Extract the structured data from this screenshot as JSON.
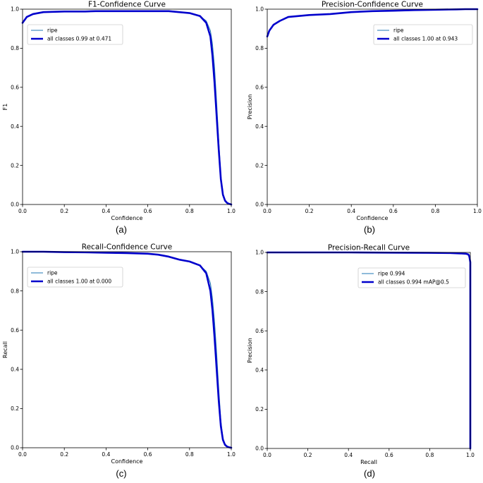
{
  "chart_data": [
    {
      "type": "line",
      "caption": "(a)",
      "title": "F1-Confidence Curve",
      "xlabel": "Confidence",
      "ylabel": "F1",
      "xlim": [
        0,
        1
      ],
      "ylim": [
        0,
        1
      ],
      "xticks": [
        "0.0",
        "0.2",
        "0.4",
        "0.6",
        "0.8",
        "1.0"
      ],
      "yticks": [
        "0.0",
        "0.2",
        "0.4",
        "0.6",
        "0.8",
        "1.0"
      ],
      "legend_position": "upper-left",
      "series": [
        {
          "name": "ripe",
          "color": "#1f77b4",
          "width": "thin",
          "x": [
            0.0,
            0.02,
            0.05,
            0.1,
            0.2,
            0.3,
            0.35,
            0.4,
            0.47,
            0.55,
            0.6,
            0.7,
            0.75,
            0.8,
            0.85,
            0.88,
            0.9,
            0.91,
            0.92,
            0.93,
            0.94,
            0.95,
            0.96,
            0.97,
            0.98,
            0.99,
            1.0
          ],
          "y": [
            0.93,
            0.96,
            0.975,
            0.985,
            0.988,
            0.988,
            0.99,
            0.99,
            0.99,
            0.99,
            0.99,
            0.99,
            0.985,
            0.98,
            0.965,
            0.94,
            0.89,
            0.82,
            0.7,
            0.52,
            0.33,
            0.15,
            0.05,
            0.015,
            0.005,
            0.002,
            0.0
          ]
        },
        {
          "name": "all classes 0.99 at 0.471",
          "color": "#0000cc",
          "width": "thick",
          "x": [
            0.0,
            0.02,
            0.05,
            0.1,
            0.2,
            0.3,
            0.35,
            0.4,
            0.47,
            0.55,
            0.6,
            0.7,
            0.75,
            0.8,
            0.85,
            0.88,
            0.9,
            0.91,
            0.92,
            0.93,
            0.94,
            0.95,
            0.96,
            0.97,
            0.98,
            0.99,
            1.0
          ],
          "y": [
            0.93,
            0.96,
            0.975,
            0.985,
            0.988,
            0.988,
            0.99,
            0.99,
            0.99,
            0.99,
            0.99,
            0.99,
            0.985,
            0.98,
            0.965,
            0.93,
            0.86,
            0.76,
            0.62,
            0.45,
            0.28,
            0.13,
            0.05,
            0.02,
            0.008,
            0.003,
            0.0
          ]
        }
      ]
    },
    {
      "type": "line",
      "caption": "(b)",
      "title": "Precision-Confidence Curve",
      "xlabel": "Confidence",
      "ylabel": "Precision",
      "xlim": [
        0,
        1
      ],
      "ylim": [
        0,
        1
      ],
      "xticks": [
        "0.0",
        "0.2",
        "0.4",
        "0.6",
        "0.8",
        "1.0"
      ],
      "yticks": [
        "0.0",
        "0.2",
        "0.4",
        "0.6",
        "0.8",
        "1.0"
      ],
      "legend_position": "upper-right",
      "series": [
        {
          "name": "ripe",
          "color": "#1f77b4",
          "width": "thin",
          "x": [
            0.0,
            0.01,
            0.03,
            0.06,
            0.1,
            0.15,
            0.2,
            0.3,
            0.4,
            0.5,
            0.6,
            0.7,
            0.8,
            0.9,
            0.943,
            1.0
          ],
          "y": [
            0.86,
            0.89,
            0.92,
            0.94,
            0.96,
            0.965,
            0.97,
            0.975,
            0.985,
            0.99,
            0.992,
            0.995,
            0.997,
            0.999,
            1.0,
            1.0
          ]
        },
        {
          "name": "all classes 1.00 at 0.943",
          "color": "#0000cc",
          "width": "thick",
          "x": [
            0.0,
            0.01,
            0.03,
            0.06,
            0.1,
            0.15,
            0.2,
            0.3,
            0.4,
            0.5,
            0.6,
            0.7,
            0.8,
            0.9,
            0.943,
            1.0
          ],
          "y": [
            0.86,
            0.89,
            0.92,
            0.94,
            0.96,
            0.965,
            0.97,
            0.975,
            0.985,
            0.99,
            0.992,
            0.995,
            0.997,
            0.999,
            1.0,
            1.0
          ]
        }
      ]
    },
    {
      "type": "line",
      "caption": "(c)",
      "title": "Recall-Confidence Curve",
      "xlabel": "Confidence",
      "ylabel": "Recall",
      "xlim": [
        0,
        1
      ],
      "ylim": [
        0,
        1
      ],
      "xticks": [
        "0.0",
        "0.2",
        "0.4",
        "0.6",
        "0.8",
        "1.0"
      ],
      "yticks": [
        "0.0",
        "0.2",
        "0.4",
        "0.6",
        "0.8",
        "1.0"
      ],
      "legend_position": "upper-left",
      "series": [
        {
          "name": "ripe",
          "color": "#1f77b4",
          "width": "thin",
          "x": [
            0.0,
            0.1,
            0.2,
            0.3,
            0.4,
            0.5,
            0.6,
            0.65,
            0.7,
            0.75,
            0.8,
            0.85,
            0.88,
            0.9,
            0.91,
            0.92,
            0.93,
            0.94,
            0.95,
            0.96,
            0.97,
            0.98,
            0.99,
            1.0
          ],
          "y": [
            1.0,
            1.0,
            0.998,
            0.997,
            0.995,
            0.993,
            0.99,
            0.985,
            0.975,
            0.96,
            0.95,
            0.93,
            0.9,
            0.84,
            0.76,
            0.64,
            0.48,
            0.3,
            0.14,
            0.05,
            0.02,
            0.008,
            0.002,
            0.0
          ]
        },
        {
          "name": "all classes 1.00 at 0.000",
          "color": "#0000cc",
          "width": "thick",
          "x": [
            0.0,
            0.1,
            0.2,
            0.3,
            0.4,
            0.5,
            0.6,
            0.65,
            0.7,
            0.75,
            0.8,
            0.85,
            0.88,
            0.9,
            0.91,
            0.92,
            0.93,
            0.94,
            0.95,
            0.96,
            0.97,
            0.98,
            0.99,
            1.0
          ],
          "y": [
            1.0,
            1.0,
            0.998,
            0.997,
            0.995,
            0.993,
            0.99,
            0.985,
            0.975,
            0.96,
            0.95,
            0.93,
            0.89,
            0.8,
            0.7,
            0.56,
            0.4,
            0.24,
            0.11,
            0.04,
            0.015,
            0.006,
            0.002,
            0.0
          ]
        }
      ]
    },
    {
      "type": "line",
      "caption": "(d)",
      "title": "Precision-Recall Curve",
      "xlabel": "Recall",
      "ylabel": "Precision",
      "xlim": [
        0,
        1
      ],
      "ylim": [
        0,
        1
      ],
      "xticks": [
        "0.0",
        "0.2",
        "0.4",
        "0.6",
        "0.8",
        "1.0"
      ],
      "yticks": [
        "0.0",
        "0.2",
        "0.4",
        "0.6",
        "0.8",
        "1.0"
      ],
      "legend_position": "upper-right",
      "series": [
        {
          "name": "ripe 0.994",
          "color": "#1f77b4",
          "width": "thin",
          "x": [
            0.0,
            0.2,
            0.4,
            0.6,
            0.8,
            0.9,
            0.95,
            0.98,
            0.99,
            0.995,
            1.0,
            1.0
          ],
          "y": [
            1.0,
            1.0,
            1.0,
            0.999,
            0.998,
            0.997,
            0.995,
            0.993,
            0.99,
            0.98,
            0.95,
            0.0
          ]
        },
        {
          "name": "all classes 0.994 mAP@0.5",
          "color": "#0000cc",
          "width": "thick",
          "x": [
            0.0,
            0.2,
            0.4,
            0.6,
            0.8,
            0.9,
            0.95,
            0.98,
            0.99,
            0.995,
            1.0,
            1.0
          ],
          "y": [
            1.0,
            1.0,
            1.0,
            0.999,
            0.998,
            0.997,
            0.995,
            0.993,
            0.99,
            0.98,
            0.95,
            0.0
          ]
        }
      ]
    }
  ]
}
